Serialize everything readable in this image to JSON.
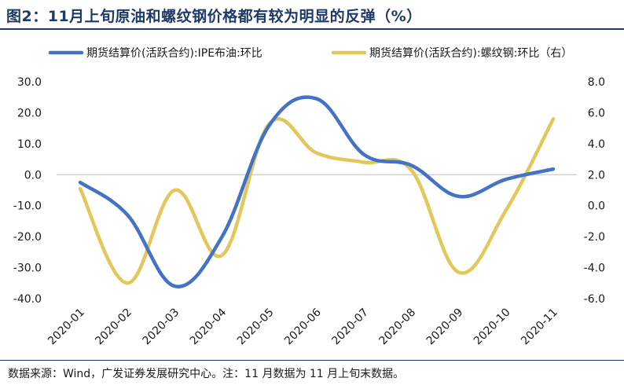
{
  "header": {
    "title": "图2：11月上旬原油和螺纹钢价格都有较为明显的反弹（%）"
  },
  "footer": {
    "source": "数据来源：Wind，广发证券发展研究中心。注：11 月数据为 11 月上旬末数据。"
  },
  "chart_data": {
    "type": "line",
    "categories": [
      "2020-01",
      "2020-02",
      "2020-03",
      "2020-04",
      "2020-05",
      "2020-06",
      "2020-07",
      "2020-08",
      "2020-09",
      "2020-10",
      "2020-11"
    ],
    "series": [
      {
        "name": "期货结算价(活跃合约):IPE布油:环比",
        "axis": "left",
        "color": "#4472c4",
        "values": [
          -2.5,
          -13.0,
          -36.0,
          -20.0,
          16.0,
          24.5,
          6.5,
          3.0,
          -7.0,
          -1.5,
          1.8
        ]
      },
      {
        "name": "期货结算价(活跃合约):螺纹钢:环比（右）",
        "axis": "right",
        "color": "#e2c85a",
        "values": [
          1.1,
          -5.0,
          1.0,
          -3.2,
          5.3,
          3.4,
          2.8,
          2.3,
          -4.3,
          -0.3,
          5.6
        ]
      }
    ],
    "y_left": {
      "min": -40,
      "max": 30,
      "ticks": [
        "30.0",
        "20.0",
        "10.0",
        "0.0",
        "-10.0",
        "-20.0",
        "-30.0",
        "-40.0"
      ]
    },
    "y_right": {
      "min": -6,
      "max": 8,
      "ticks": [
        "8.0",
        "6.0",
        "4.0",
        "2.0",
        "0.0",
        "-2.0",
        "-4.0",
        "-6.0"
      ]
    },
    "grid": false,
    "legend_position": "top"
  }
}
